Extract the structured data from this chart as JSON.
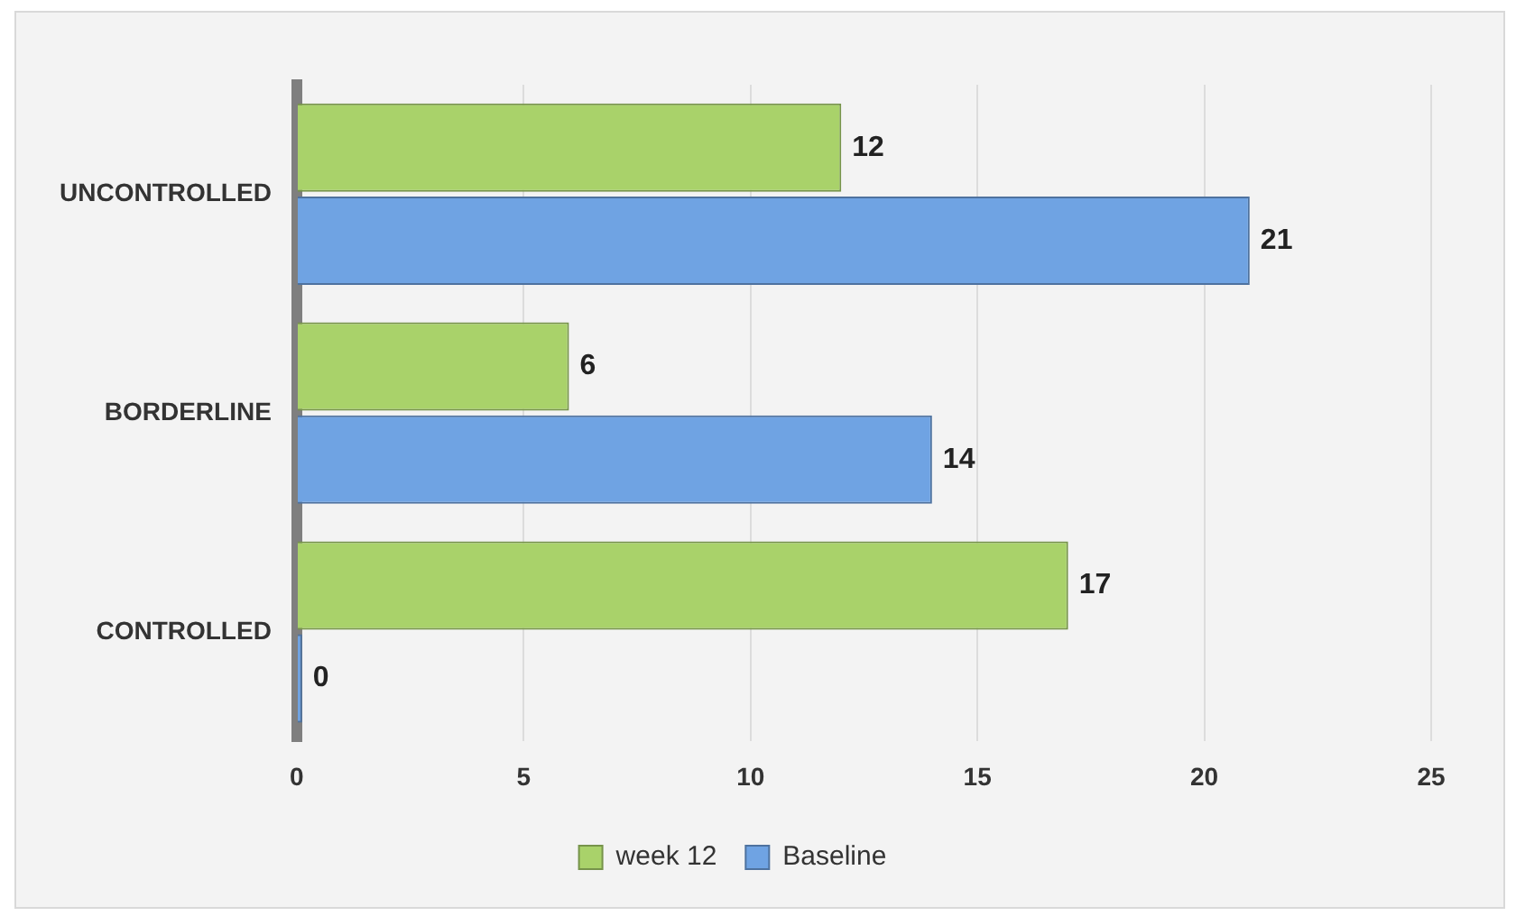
{
  "chart_data": {
    "type": "bar",
    "orientation": "horizontal",
    "categories": [
      "UNCONTROLLED",
      "BORDERLINE",
      "CONTROLLED"
    ],
    "series": [
      {
        "name": "week 12",
        "color": "#a9d26a",
        "values": [
          12,
          6,
          17
        ]
      },
      {
        "name": "Baseline",
        "color": "#6fa3e3",
        "values": [
          21,
          14,
          0
        ]
      }
    ],
    "xlim": [
      0,
      25
    ],
    "xticks": [
      0,
      5,
      10,
      15,
      20,
      25
    ],
    "grid": "x",
    "legend": "bottom",
    "data_labels": true
  }
}
